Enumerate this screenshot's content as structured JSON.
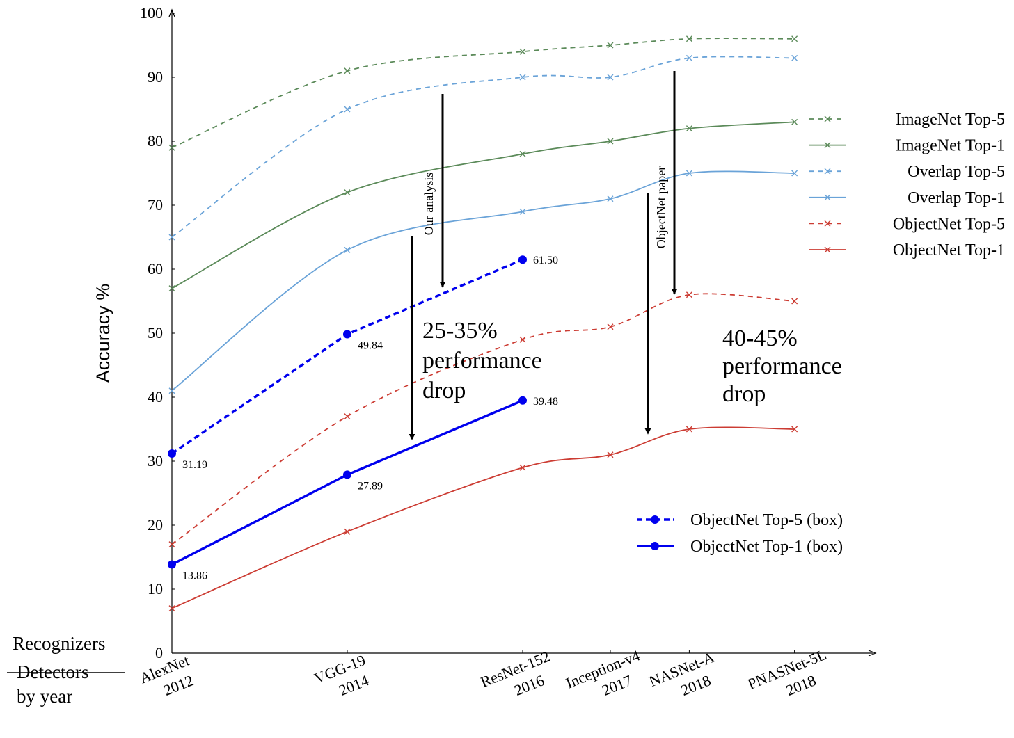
{
  "chart_data": {
    "type": "line",
    "ylabel": "Accuracy %",
    "ylim": [
      0,
      100
    ],
    "yticks": [
      0,
      10,
      20,
      30,
      40,
      50,
      60,
      70,
      80,
      90,
      100
    ],
    "categories": [
      {
        "id": "alexnet",
        "name": "AlexNet",
        "year": "2012",
        "x": 2012
      },
      {
        "id": "vgg19",
        "name": "VGG-19",
        "year": "2014",
        "x": 2014
      },
      {
        "id": "resnet152",
        "name": "ResNet-152",
        "year": "2016",
        "x": 2016
      },
      {
        "id": "inceptionv4",
        "name": "Inception-v4",
        "year": "2017",
        "x": 2017
      },
      {
        "id": "nasneta",
        "name": "NASNet-A",
        "year": "2018",
        "x": 2017.9
      },
      {
        "id": "pnasnet5l",
        "name": "PNASNet-5L",
        "year": "2018",
        "x": 2019.1
      }
    ],
    "axis_corner": {
      "line1": "Recognizers",
      "line2_struck": "Detectors",
      "line3": "by year"
    },
    "series": [
      {
        "name": "ImageNet Top-5",
        "color": "#5b8a59",
        "dashed": true,
        "marker": "x",
        "values": [
          79,
          91,
          94,
          95,
          96,
          96
        ]
      },
      {
        "name": "ImageNet Top-1",
        "color": "#5b8a59",
        "dashed": false,
        "marker": "x",
        "values": [
          57,
          72,
          78,
          80,
          82,
          83
        ]
      },
      {
        "name": "Overlap Top-5",
        "color": "#6aa3d8",
        "dashed": true,
        "marker": "x",
        "values": [
          65,
          85,
          90,
          90,
          93,
          93
        ]
      },
      {
        "name": "Overlap Top-1",
        "color": "#6aa3d8",
        "dashed": false,
        "marker": "x",
        "values": [
          41,
          63,
          69,
          71,
          75,
          75
        ]
      },
      {
        "name": "ObjectNet Top-5",
        "color": "#cc3c33",
        "dashed": true,
        "marker": "x",
        "values": [
          17,
          37,
          49,
          51,
          56,
          55
        ]
      },
      {
        "name": "ObjectNet Top-1",
        "color": "#cc3c33",
        "dashed": false,
        "marker": "x",
        "values": [
          7,
          19,
          29,
          31,
          35,
          35
        ]
      }
    ],
    "box_series": [
      {
        "name": "ObjectNet Top-5 (box)",
        "color": "#0000ee",
        "dashed": true,
        "marker": "dot",
        "values": [
          31.19,
          49.84,
          61.5
        ],
        "labels": [
          "31.19",
          "49.84",
          "61.50"
        ]
      },
      {
        "name": "ObjectNet Top-1 (box)",
        "color": "#0000ee",
        "dashed": false,
        "marker": "dot",
        "values": [
          13.86,
          27.89,
          39.48
        ],
        "labels": [
          "13.86",
          "27.89",
          "39.48"
        ]
      }
    ],
    "annotations": {
      "our_analysis": "Our analysis",
      "objectnet_paper": "ObjectNet paper",
      "drop_left": [
        "25-35%",
        "performance",
        "drop"
      ],
      "drop_right": [
        "40-45%",
        "performance",
        "drop"
      ]
    },
    "legend_top": "right",
    "legend_bottom": "lower-right",
    "grid": false
  }
}
